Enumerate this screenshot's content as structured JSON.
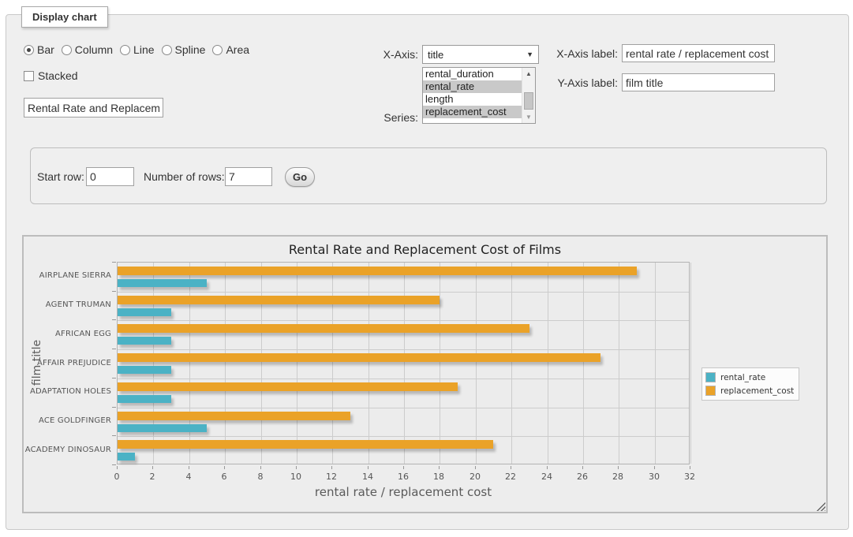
{
  "window": {
    "legend": "Display chart"
  },
  "chart_type": {
    "options": [
      {
        "label": "Bar",
        "selected": true
      },
      {
        "label": "Column",
        "selected": false
      },
      {
        "label": "Line",
        "selected": false
      },
      {
        "label": "Spline",
        "selected": false
      },
      {
        "label": "Area",
        "selected": false
      }
    ]
  },
  "stacked": {
    "label": "Stacked",
    "checked": false
  },
  "chart_title_input": {
    "value": "Rental Rate and Replacement Cost of Films"
  },
  "x_axis_select": {
    "label": "X-Axis:",
    "value": "title",
    "arrow_icon": "▼"
  },
  "series_list": {
    "label": "Series:",
    "options": [
      {
        "label": "rental_duration",
        "selected": false
      },
      {
        "label": "rental_rate",
        "selected": true
      },
      {
        "label": "length",
        "selected": false
      },
      {
        "label": "replacement_cost",
        "selected": true
      }
    ],
    "scroll_up_icon": "▲",
    "scroll_down_icon": "▼"
  },
  "x_axis_label_field": {
    "label": "X-Axis label:",
    "value": "rental rate / replacement cost"
  },
  "y_axis_label_field": {
    "label": "Y-Axis label:",
    "value": "film title"
  },
  "row_controls": {
    "start_row_label": "Start row:",
    "start_row_value": "0",
    "num_rows_label": "Number of rows:",
    "num_rows_value": "7",
    "go_label": "Go"
  },
  "chart_data": {
    "type": "bar",
    "orientation": "horizontal",
    "title": "Rental Rate and Replacement Cost of Films",
    "categories": [
      "AIRPLANE SIERRA",
      "AGENT TRUMAN",
      "AFRICAN EGG",
      "AFFAIR PREJUDICE",
      "ADAPTATION HOLES",
      "ACE GOLDFINGER",
      "ACADEMY DINOSAUR"
    ],
    "series": [
      {
        "name": "rental_rate",
        "color": "#4bb2c5",
        "values": [
          4.99,
          2.99,
          2.99,
          2.99,
          2.99,
          4.99,
          0.99
        ]
      },
      {
        "name": "replacement_cost",
        "color": "#eaa228",
        "values": [
          28.99,
          17.99,
          22.99,
          26.99,
          18.99,
          12.99,
          20.99
        ]
      }
    ],
    "series_visual_order_top_first": [
      "replacement_cost",
      "rental_rate"
    ],
    "xlabel": "rental rate / replacement cost",
    "ylabel": "film title",
    "xlim": [
      0,
      32
    ],
    "x_tick_interval": 2,
    "x_ticks": [
      0,
      2,
      4,
      6,
      8,
      10,
      12,
      14,
      16,
      18,
      20,
      22,
      24,
      26,
      28,
      30,
      32
    ],
    "grid": true,
    "legend_position": "right",
    "colors": {
      "grid": "#cccccc",
      "plot_background": "#ececec",
      "axis_text": "#555555"
    }
  }
}
